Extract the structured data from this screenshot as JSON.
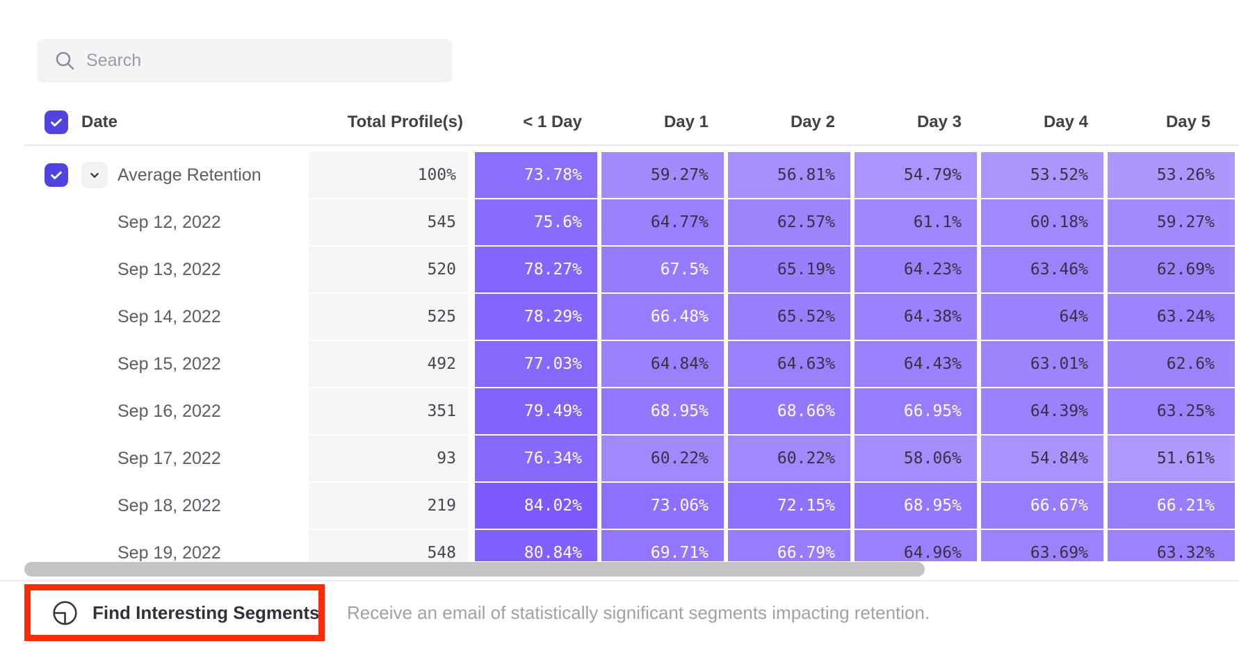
{
  "search": {
    "placeholder": "Search"
  },
  "table": {
    "columns": {
      "date": "Date",
      "total": "Total Profile(s)",
      "days": [
        "< 1 Day",
        "Day 1",
        "Day 2",
        "Day 3",
        "Day 4",
        "Day 5"
      ]
    },
    "average_row": {
      "label": "Average Retention",
      "total": "100%",
      "values": [
        "73.78%",
        "59.27%",
        "56.81%",
        "54.79%",
        "53.52%",
        "53.26%"
      ]
    },
    "rows": [
      {
        "label": "Sep 12, 2022",
        "total": "545",
        "values": [
          "75.6%",
          "64.77%",
          "62.57%",
          "61.1%",
          "60.18%",
          "59.27%"
        ]
      },
      {
        "label": "Sep 13, 2022",
        "total": "520",
        "values": [
          "78.27%",
          "67.5%",
          "65.19%",
          "64.23%",
          "63.46%",
          "62.69%"
        ]
      },
      {
        "label": "Sep 14, 2022",
        "total": "525",
        "values": [
          "78.29%",
          "66.48%",
          "65.52%",
          "64.38%",
          "64%",
          "63.24%"
        ]
      },
      {
        "label": "Sep 15, 2022",
        "total": "492",
        "values": [
          "77.03%",
          "64.84%",
          "64.63%",
          "64.43%",
          "63.01%",
          "62.6%"
        ]
      },
      {
        "label": "Sep 16, 2022",
        "total": "351",
        "values": [
          "79.49%",
          "68.95%",
          "68.66%",
          "66.95%",
          "64.39%",
          "63.25%"
        ]
      },
      {
        "label": "Sep 17, 2022",
        "total": "93",
        "values": [
          "76.34%",
          "60.22%",
          "60.22%",
          "58.06%",
          "54.84%",
          "51.61%"
        ]
      },
      {
        "label": "Sep 18, 2022",
        "total": "219",
        "values": [
          "84.02%",
          "73.06%",
          "72.15%",
          "68.95%",
          "66.67%",
          "66.21%"
        ]
      },
      {
        "label": "Sep 19, 2022",
        "total": "548",
        "values": [
          "80.84%",
          "69.71%",
          "66.79%",
          "64.96%",
          "63.69%",
          "63.32%"
        ]
      }
    ]
  },
  "heatmap": {
    "base_color": "#633bfc",
    "white_text_threshold": 66,
    "dark_text_color": "#363245"
  },
  "colors": {
    "accent_checkbox": "#4f44e0",
    "annotation_red": "#fa2c05",
    "profiles_bg": "#f5f5f6"
  },
  "footer": {
    "button_label": "Find Interesting Segments",
    "description": "Receive an email of statistically significant segments impacting retention."
  }
}
